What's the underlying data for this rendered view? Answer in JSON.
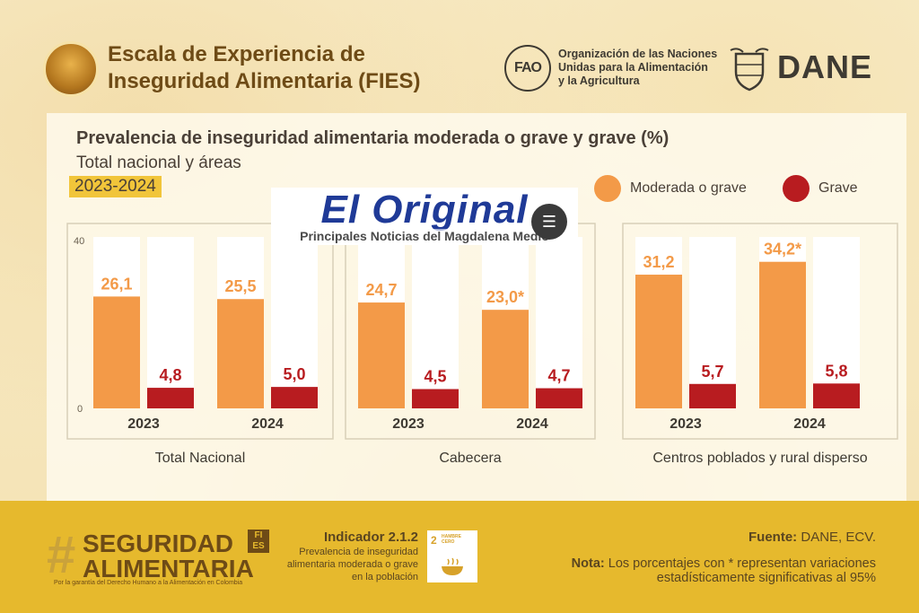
{
  "header": {
    "title_line1": "Escala de Experiencia de",
    "title_line2": "Inseguridad Alimentaria (FIES)",
    "fao_text_line1": "Organización de las Naciones",
    "fao_text_line2": "Unidas para la Alimentación",
    "fao_text_line3": "y la Agricultura",
    "fao_logo_text": "FAO",
    "dane_text": "DANE"
  },
  "watermark": {
    "title": "El Original",
    "subtitle": "Principales Noticias del Magdalena Medio"
  },
  "chart_data": {
    "type": "bar",
    "title": "Prevalencia de inseguridad alimentaria moderada o grave y grave (%)",
    "subtitle": "Total nacional y áreas",
    "period": "2023-2024",
    "ylim": [
      0,
      40
    ],
    "yticks": [
      "40",
      "0"
    ],
    "legend": [
      {
        "name": "Moderada o grave",
        "color": "#f39a48"
      },
      {
        "name": "Grave",
        "color": "#b81c20"
      }
    ],
    "groups": [
      {
        "name": "Total Nacional",
        "years": [
          {
            "year": "2023",
            "moderada": 26.1,
            "moderada_label": "26,1",
            "grave": 4.8,
            "grave_label": "4,8"
          },
          {
            "year": "2024",
            "moderada": 25.5,
            "moderada_label": "25,5",
            "grave": 5.0,
            "grave_label": "5,0"
          }
        ]
      },
      {
        "name": "Cabecera",
        "years": [
          {
            "year": "2023",
            "moderada": 24.7,
            "moderada_label": "24,7",
            "grave": 4.5,
            "grave_label": "4,5"
          },
          {
            "year": "2024",
            "moderada": 23.0,
            "moderada_label": "23,0*",
            "grave": 4.7,
            "grave_label": "4,7"
          }
        ]
      },
      {
        "name": "Centros poblados y rural disperso",
        "years": [
          {
            "year": "2023",
            "moderada": 31.2,
            "moderada_label": "31,2",
            "grave": 5.7,
            "grave_label": "5,7"
          },
          {
            "year": "2024",
            "moderada": 34.2,
            "moderada_label": "34,2*",
            "grave": 5.8,
            "grave_label": "5,8"
          }
        ]
      }
    ]
  },
  "footer": {
    "brand_line1": "SEGURIDAD",
    "brand_line2": "ALIMENTARIA",
    "brand_badge_line1": "FI",
    "brand_badge_line2": "ES",
    "brand_sub": "Por la garantía del Derecho Humano a la Alimentación en Colombia",
    "indicator_title": "Indicador 2.1.2",
    "indicator_desc": "Prevalencia de inseguridad alimentaria moderada o grave en la población",
    "sdg_number": "2",
    "sdg_label": "HAMBRE CERO",
    "source_label": "Fuente:",
    "source_text": " DANE, ECV.",
    "note_label": "Nota:",
    "note_text": " Los porcentajes con * representan variaciones estadísticamente significativas al 95%"
  }
}
